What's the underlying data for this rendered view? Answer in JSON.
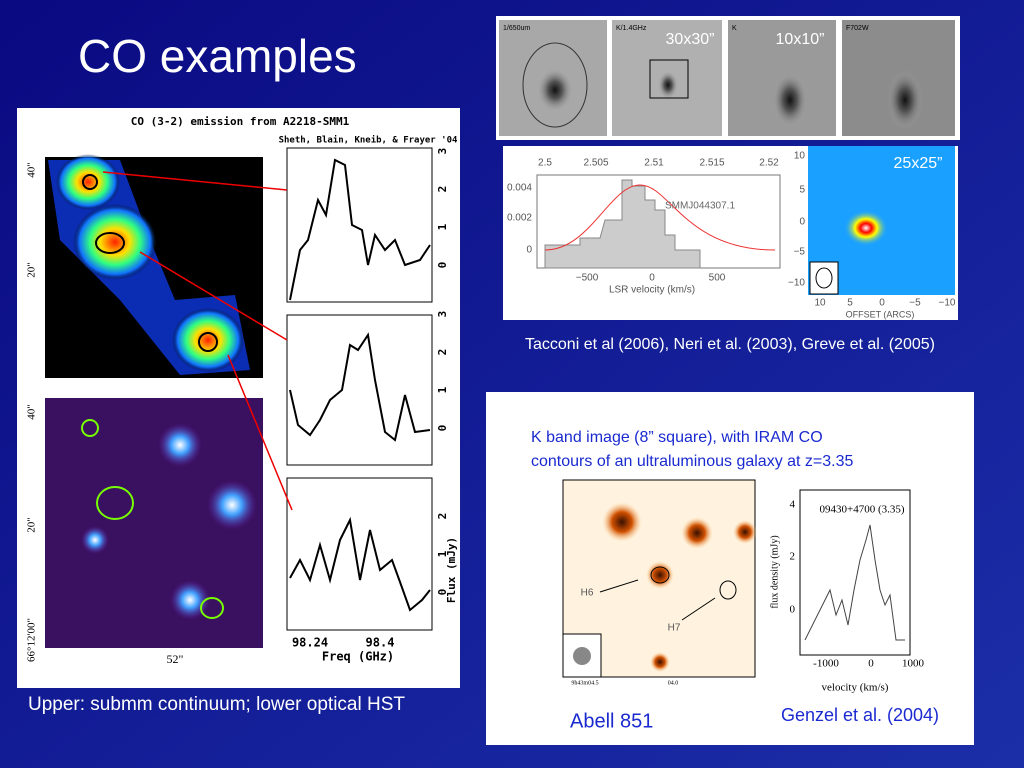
{
  "title": "CO examples",
  "left_figure": {
    "title": "CO (3-2) emission from A2218-SMM1",
    "authors": "Sheth, Blain, Kneib, & Frayer '04",
    "dec_labels_top": [
      "40\"",
      "20\""
    ],
    "dec_labels_bottom": [
      "40\"",
      "20\"",
      "66°12'00\""
    ],
    "ra_label": "52\"",
    "flux_ticks": [
      [
        "0",
        "1",
        "2",
        "3"
      ],
      [
        "0",
        "1",
        "2",
        "3"
      ],
      [
        "0",
        "1",
        "2"
      ]
    ],
    "freq_ticks": [
      "98.24",
      "98.4"
    ],
    "x_label": "Freq (GHz)",
    "y_label": "Flux (mJy)",
    "caption": "Upper: submm continuum; lower optical HST"
  },
  "top_strip": {
    "bands": [
      "1/650um",
      "K/1.4GHz",
      "K",
      "F702W"
    ],
    "sizes": [
      "30x30”",
      "10x10”"
    ]
  },
  "spectrum": {
    "top_ticks": [
      "2.5",
      "2.505",
      "2.51",
      "2.515",
      "2.52"
    ],
    "left_ticks": [
      "0.004",
      "0.002",
      "0"
    ],
    "bottom_ticks": [
      "−500",
      "0",
      "500"
    ],
    "x_label": "LSR velocity (km/s)",
    "source": "SMMJ044307.1"
  },
  "map": {
    "size": "25x25”",
    "y_ticks": [
      "10",
      "5",
      "0",
      "−5",
      "−10"
    ],
    "x_ticks": [
      "10",
      "5",
      "0",
      "−5",
      "−10"
    ],
    "x_label": "OFFSET (ARCS)"
  },
  "right_caption": "Tacconi et al (2006), Neri et al. (2003), Greve et al. (2005)",
  "genzel_box": {
    "text_lines": [
      "K band image (8” square), with IRAM CO",
      "contours of an ultraluminous galaxy at z=3.35"
    ],
    "image_labels": [
      "H6",
      "H7"
    ],
    "ra_labels": [
      "9h43m04.5",
      "04.0"
    ],
    "inset_title": "09430+4700 (3.35)",
    "inset_y_ticks": [
      "4",
      "2",
      "0"
    ],
    "inset_x_ticks": [
      "-1000",
      "0",
      "1000"
    ],
    "inset_x_label": "velocity (km/s)",
    "inset_y_label": "flux density (mJy)",
    "cluster": "Abell 851",
    "reference": "Genzel et al. (2004)"
  }
}
